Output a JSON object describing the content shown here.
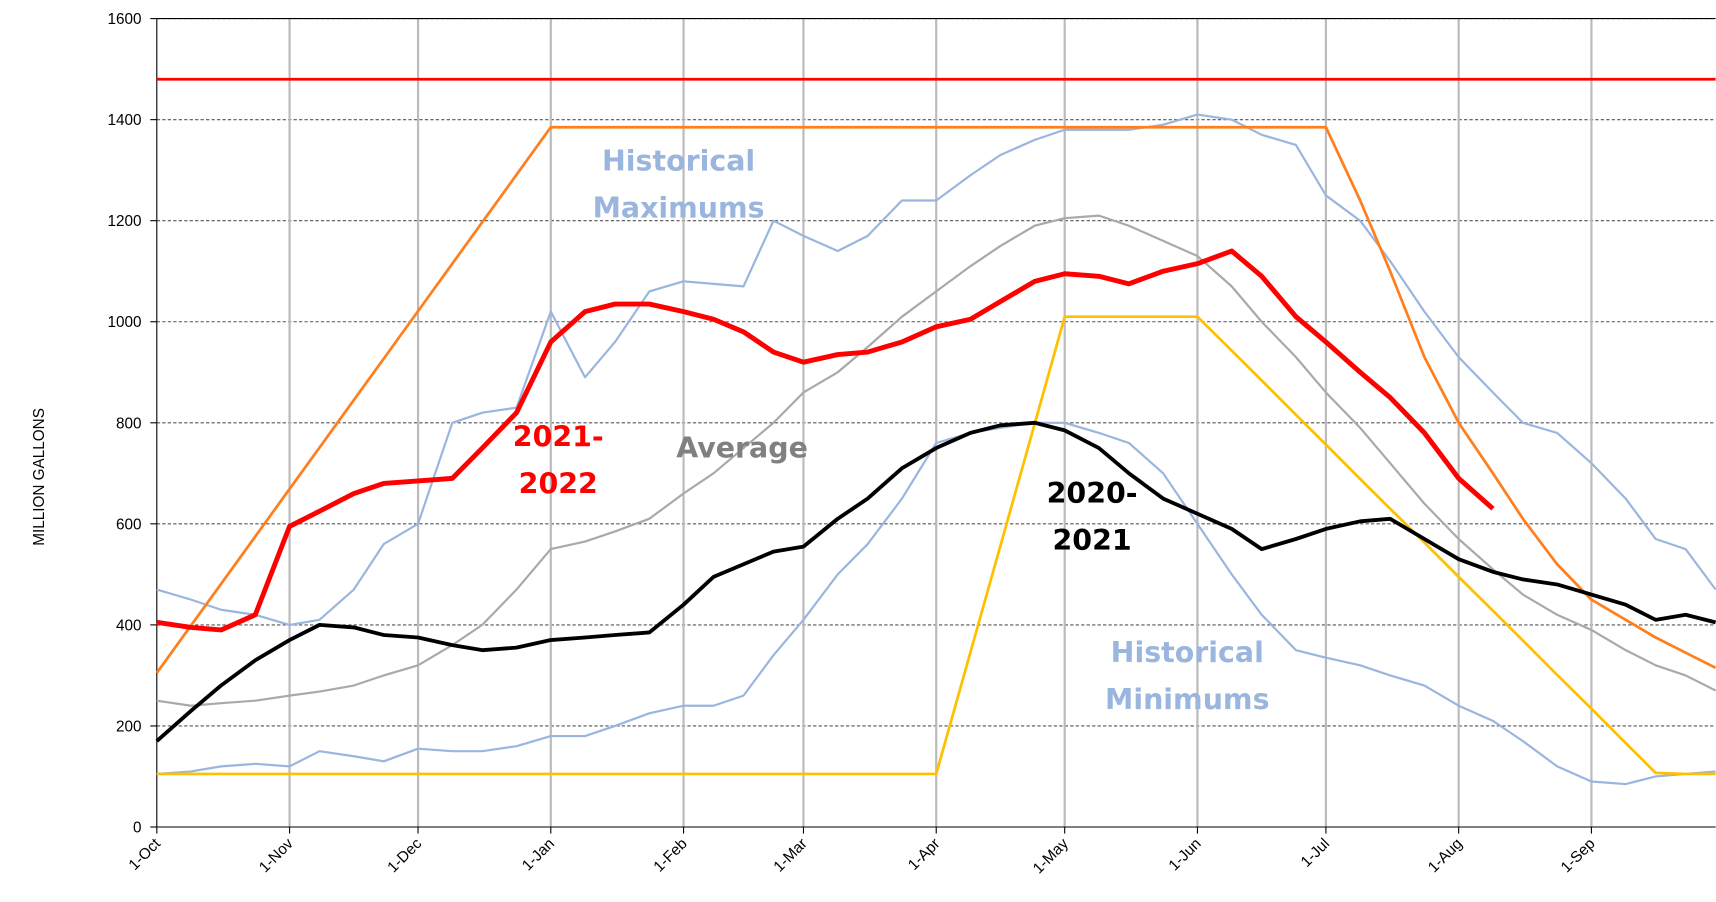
{
  "chart_data": {
    "type": "line",
    "ylabel": "MILLION GALLONS",
    "x": [
      0,
      8,
      15,
      23,
      31,
      38,
      46,
      53,
      61,
      69,
      76,
      84,
      92,
      100,
      107,
      115,
      123,
      130,
      137,
      144,
      151,
      159,
      166,
      174,
      182,
      190,
      197,
      205,
      212,
      220,
      227,
      235,
      243,
      251,
      258,
      266,
      273,
      281,
      288,
      296,
      304,
      312,
      319,
      327,
      335,
      343,
      350,
      357,
      364
    ],
    "xlim": [
      0,
      364
    ],
    "xticks": [
      {
        "value": 0,
        "label": "1-Oct"
      },
      {
        "value": 31,
        "label": "1-Nov"
      },
      {
        "value": 61,
        "label": "1-Dec"
      },
      {
        "value": 92,
        "label": "1-Jan"
      },
      {
        "value": 123,
        "label": "1-Feb"
      },
      {
        "value": 151,
        "label": "1-Mar"
      },
      {
        "value": 182,
        "label": "1-Apr"
      },
      {
        "value": 212,
        "label": "1-May"
      },
      {
        "value": 243,
        "label": "1-Jun"
      },
      {
        "value": 273,
        "label": "1-Jul"
      },
      {
        "value": 304,
        "label": "1-Aug"
      },
      {
        "value": 335,
        "label": "1-Sep"
      }
    ],
    "ylim": [
      0,
      1600
    ],
    "yticks": [
      0,
      200,
      400,
      600,
      800,
      1000,
      1200,
      1400,
      1600
    ],
    "grid": true,
    "series": [
      {
        "color": "#ff0000",
        "width": 2.5,
        "values": [
          1480,
          1480,
          1480,
          1480,
          1480,
          1480,
          1480,
          1480,
          1480,
          1480,
          1480,
          1480,
          1480,
          1480,
          1480,
          1480,
          1480,
          1480,
          1480,
          1480,
          1480,
          1480,
          1480,
          1480,
          1480,
          1480,
          1480,
          1480,
          1480,
          1480,
          1480,
          1480,
          1480,
          1480,
          1480,
          1480,
          1480,
          1480,
          1480,
          1480,
          1480,
          1480,
          1480,
          1480,
          1480,
          1480,
          1480,
          1480,
          1480
        ]
      },
      {
        "color": "#a9a9a9",
        "width": 2,
        "values": [
          250,
          240,
          245,
          250,
          260,
          268,
          280,
          300,
          320,
          360,
          400,
          470,
          550,
          565,
          585,
          610,
          660,
          700,
          750,
          800,
          860,
          900,
          950,
          1010,
          1060,
          1110,
          1150,
          1190,
          1205,
          1210,
          1190,
          1160,
          1130,
          1070,
          1000,
          930,
          860,
          790,
          720,
          640,
          570,
          510,
          460,
          420,
          390,
          350,
          320,
          300,
          270
        ]
      },
      {
        "color": "#9ab5de",
        "width": 2,
        "values": [
          470,
          450,
          430,
          420,
          400,
          410,
          470,
          560,
          600,
          800,
          820,
          830,
          1020,
          890,
          960,
          1060,
          1080,
          1075,
          1070,
          1200,
          1170,
          1140,
          1170,
          1240,
          1240,
          1290,
          1330,
          1360,
          1380,
          1380,
          1380,
          1390,
          1410,
          1400,
          1370,
          1350,
          1250,
          1200,
          1120,
          1020,
          930,
          860,
          800,
          780,
          720,
          650,
          570,
          550,
          470
        ]
      },
      {
        "color": "#9ab5de",
        "width": 2,
        "values": [
          105,
          110,
          120,
          125,
          120,
          150,
          140,
          130,
          155,
          150,
          150,
          160,
          180,
          180,
          200,
          225,
          240,
          240,
          260,
          340,
          410,
          500,
          560,
          650,
          760,
          780,
          790,
          800,
          800,
          780,
          760,
          700,
          600,
          500,
          420,
          350,
          335,
          320,
          300,
          280,
          240,
          210,
          170,
          120,
          90,
          85,
          100,
          105,
          110
        ]
      },
      {
        "color": "#ff7f1e",
        "width": 2.5,
        "values": [
          305,
          399,
          481,
          575,
          669,
          751,
          845,
          927,
          1021,
          1115,
          1197,
          1291,
          1385,
          1385,
          1385,
          1385,
          1385,
          1385,
          1385,
          1385,
          1385,
          1385,
          1385,
          1385,
          1385,
          1385,
          1385,
          1385,
          1385,
          1385,
          1385,
          1385,
          1385,
          1385,
          1385,
          1385,
          1385,
          1240,
          1100,
          930,
          800,
          700,
          610,
          520,
          450,
          410,
          375,
          345,
          315
        ]
      },
      {
        "color": "#ffc000",
        "width": 2.5,
        "values": [
          105,
          105,
          105,
          105,
          105,
          105,
          105,
          105,
          105,
          105,
          105,
          105,
          105,
          105,
          105,
          105,
          105,
          105,
          105,
          105,
          105,
          105,
          105,
          105,
          105,
          346,
          557,
          798,
          1010,
          1010,
          1010,
          1010,
          1010,
          943,
          884,
          816,
          757,
          689,
          630,
          563,
          495,
          428,
          369,
          301,
          234,
          166,
          107,
          105,
          105
        ]
      },
      {
        "color": "#000000",
        "width": 3.5,
        "values": [
          170,
          230,
          280,
          330,
          370,
          400,
          395,
          380,
          375,
          360,
          350,
          355,
          370,
          375,
          380,
          385,
          440,
          495,
          520,
          545,
          555,
          610,
          650,
          710,
          750,
          780,
          795,
          800,
          785,
          750,
          700,
          650,
          620,
          590,
          550,
          570,
          590,
          605,
          610,
          570,
          530,
          505,
          490,
          480,
          460,
          440,
          410,
          420,
          405
        ]
      },
      {
        "color": "#ff0000",
        "width": 4.5,
        "values": [
          405,
          395,
          390,
          420,
          595,
          625,
          660,
          680,
          685,
          690,
          750,
          820,
          960,
          1020,
          1035,
          1035,
          1020,
          1005,
          980,
          940,
          920,
          935,
          940,
          960,
          990,
          1005,
          1040,
          1080,
          1095,
          1090,
          1075,
          1100,
          1115,
          1140,
          1090,
          1010,
          960,
          900,
          850,
          780,
          690,
          630,
          null,
          null,
          null,
          null,
          null,
          null,
          null
        ]
      }
    ],
    "annotations": [
      {
        "lines": [
          "Historical",
          "Maximums"
        ],
        "color": "#9ab5de"
      },
      {
        "lines": [
          "2021-",
          "2022"
        ],
        "color": "#ff0000"
      },
      {
        "lines": [
          "Average"
        ],
        "color": "#808080"
      },
      {
        "lines": [
          "2020-",
          "2021"
        ],
        "color": "#000000"
      },
      {
        "lines": [
          "Historical",
          "Minimums"
        ],
        "color": "#9ab5de"
      }
    ]
  }
}
